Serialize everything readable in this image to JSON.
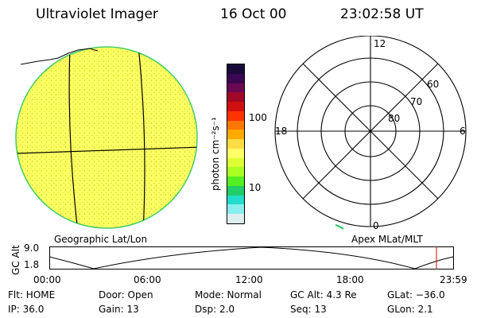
{
  "header": {
    "title": "Ultraviolet Imager",
    "date": "16 Oct 00",
    "time": "23:02:58 UT"
  },
  "colorbar": {
    "unit_label": "photon cm⁻²s⁻¹",
    "ticks": [
      "100",
      "10"
    ],
    "colors": [
      "#1a0a3a",
      "#3a0850",
      "#6a0850",
      "#a00828",
      "#d01010",
      "#ff3300",
      "#ff7700",
      "#ffaa00",
      "#ffdd44",
      "#ffff66",
      "#ddff33",
      "#aaff22",
      "#55ee22",
      "#22cc66",
      "#22ddcc",
      "#88eeee",
      "#ddeeee"
    ]
  },
  "polar_plot": {
    "mlt_labels": {
      "top": "12",
      "left": "18",
      "right": "6",
      "bottom": "0"
    },
    "lat_labels": [
      "60",
      "70",
      "80"
    ]
  },
  "map_labels": {
    "left": "Geographic Lat/Lon",
    "right": "Apex MLat/MLT"
  },
  "altitude_plot": {
    "axis_label": "GC Alt",
    "y_ticks": [
      "9.0",
      "1.8"
    ],
    "x_ticks": [
      "00:00",
      "06:00",
      "12:00",
      "18:00",
      "23:59"
    ]
  },
  "status": {
    "flt": "Flt: HOME",
    "ip": "IP: 36.0",
    "door": "Door: Open",
    "gain": "Gain: 13",
    "mode": "Mode: Normal",
    "dsp": "Dsp:    2.0",
    "gcalt": "GC Alt: 4.3 Re",
    "seq": "Seq: 13",
    "glat": "GLat: −36.0",
    "glon": "GLon:   2.1"
  }
}
